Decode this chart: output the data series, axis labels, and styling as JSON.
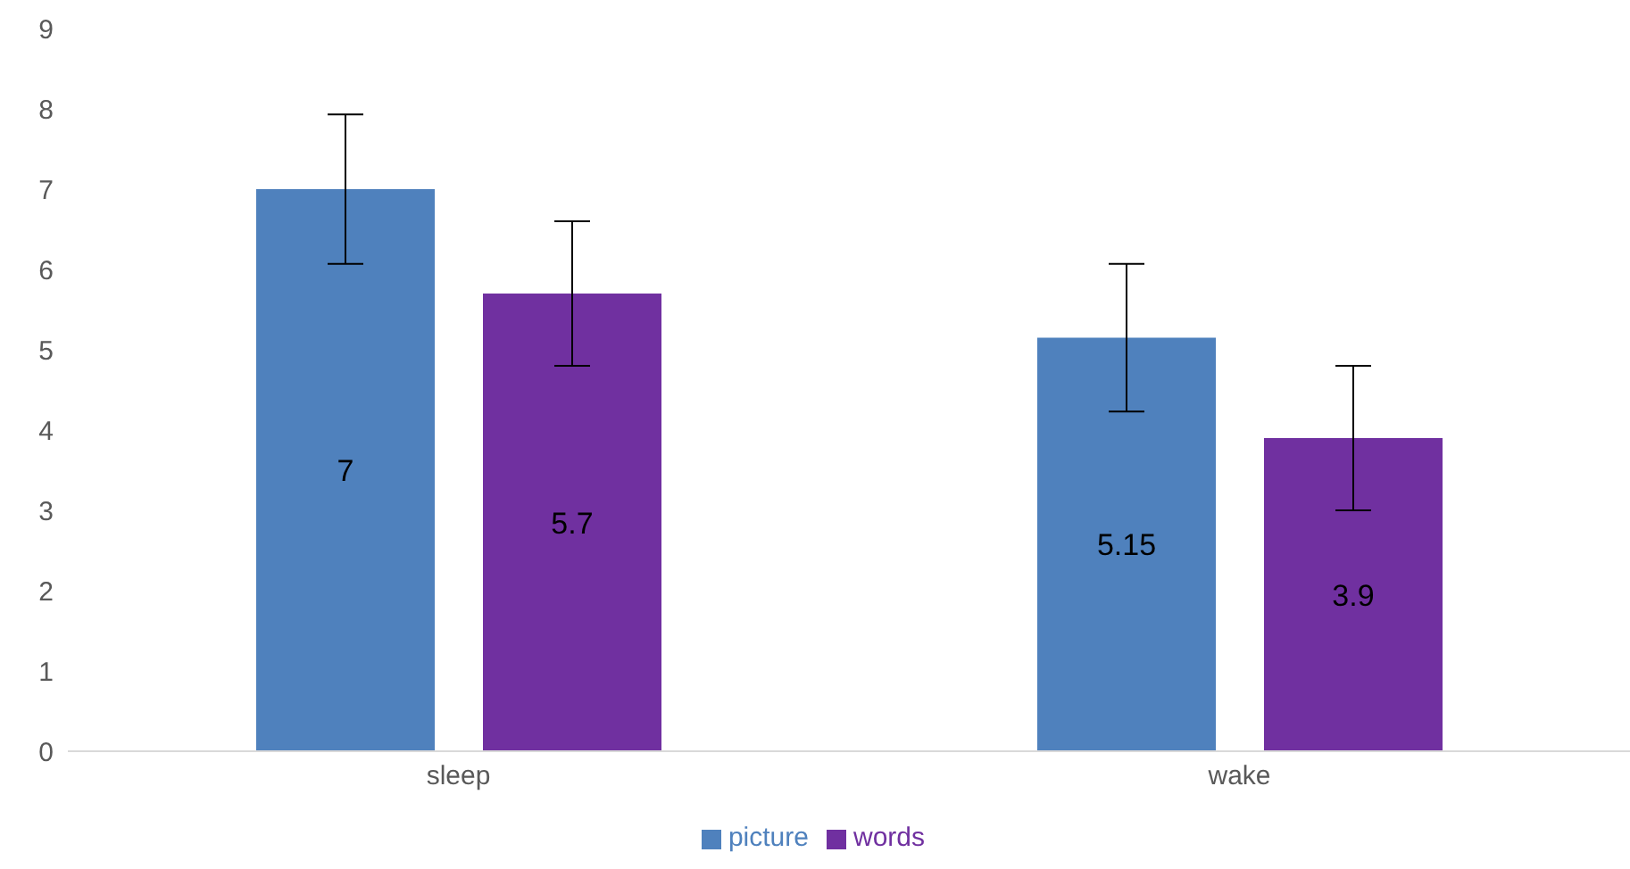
{
  "chart_data": {
    "type": "bar",
    "categories": [
      "sleep",
      "wake"
    ],
    "series": [
      {
        "name": "picture",
        "color": "#4f81bd",
        "values": [
          7,
          5.15
        ],
        "errors": [
          0.93,
          0.92
        ]
      },
      {
        "name": "words",
        "color": "#7030a0",
        "values": [
          5.7,
          3.9
        ],
        "errors": [
          0.9,
          0.9
        ]
      }
    ],
    "ylim": [
      0,
      9
    ],
    "yticks": [
      0,
      1,
      2,
      3,
      4,
      5,
      6,
      7,
      8,
      9
    ],
    "grid": false,
    "legend": "bottom",
    "data_labels": true
  }
}
